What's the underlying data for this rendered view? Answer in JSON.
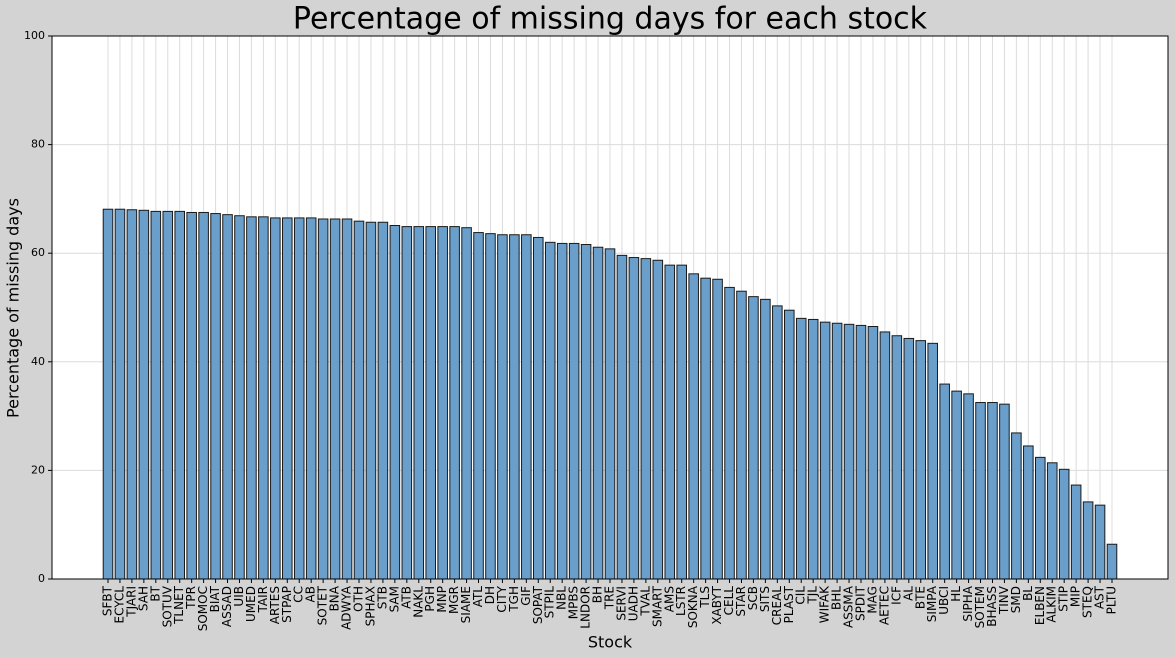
{
  "chart_data": {
    "type": "bar",
    "title": "Percentage of missing days for each stock",
    "x_label": "Stock",
    "y_label": "Percentage of missing days",
    "categories": [
      "SFBT",
      "ECYCL",
      "TJARI",
      "SAH",
      "BT",
      "SOTUV",
      "TLNET",
      "TPR",
      "SOMOC",
      "BIAT",
      "ASSAD",
      "UIB",
      "UMED",
      "TAIR",
      "ARTES",
      "STPAP",
      "CC",
      "AB",
      "SOTET",
      "BNA",
      "ADWYA",
      "OTH",
      "SPHAX",
      "STB",
      "SAM",
      "ATB",
      "NAKL",
      "PGH",
      "MNP",
      "MGR",
      "SIAME",
      "ATL",
      "DH",
      "CITY",
      "TGH",
      "GIF",
      "SOPAT",
      "STPIL",
      "NBL",
      "MPBS",
      "LNDOR",
      "BH",
      "TRE",
      "SERVI",
      "UADH",
      "TVAL",
      "SMART",
      "AMS",
      "LSTR",
      "SOKNA",
      "TLS",
      "XABYT",
      "CELL",
      "STAR",
      "SCB",
      "SITS",
      "CREAL",
      "PLAST",
      "CIL",
      "TJL",
      "WIFAK",
      "BHL",
      "ASSMA",
      "SPDIT",
      "MAG",
      "AETEC",
      "ICF",
      "AL",
      "BTE",
      "SIMPA",
      "UBCI",
      "HL",
      "SIPHA",
      "SOTEM",
      "BHASS",
      "TINV",
      "SMD",
      "BL",
      "ELBEN",
      "ALKIM",
      "STIP",
      "MIP",
      "STEQ",
      "AST",
      "PLTU"
    ],
    "values": [
      68.1,
      68.1,
      68.0,
      67.9,
      67.7,
      67.7,
      67.7,
      67.5,
      67.5,
      67.3,
      67.1,
      66.9,
      66.7,
      66.7,
      66.5,
      66.5,
      66.5,
      66.5,
      66.3,
      66.3,
      66.3,
      65.9,
      65.7,
      65.7,
      65.1,
      64.9,
      64.9,
      64.9,
      64.9,
      64.9,
      64.7,
      63.8,
      63.6,
      63.4,
      63.4,
      63.4,
      62.9,
      62.0,
      61.8,
      61.8,
      61.6,
      61.1,
      60.8,
      59.6,
      59.2,
      59.0,
      58.7,
      57.8,
      57.8,
      56.2,
      55.4,
      55.2,
      53.7,
      53.0,
      52.0,
      51.5,
      50.3,
      49.5,
      48.0,
      47.8,
      47.3,
      47.1,
      46.9,
      46.7,
      46.5,
      45.5,
      44.8,
      44.3,
      43.9,
      43.4,
      35.9,
      34.6,
      34.1,
      32.5,
      32.5,
      32.2,
      26.9,
      24.5,
      22.4,
      21.4,
      20.2,
      17.3,
      14.2,
      13.6,
      6.4
    ],
    "color": "#6a9fcb",
    "ylim": [
      0,
      100
    ],
    "yticks": [
      0,
      20,
      40,
      60,
      80,
      100
    ],
    "grid": true
  }
}
